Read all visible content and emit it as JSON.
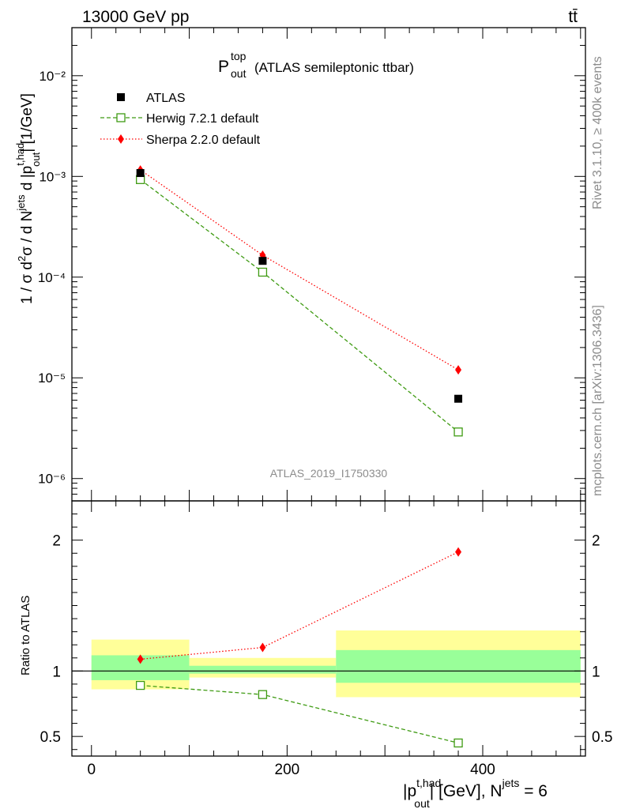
{
  "header": {
    "energy_label": "13000 GeV pp",
    "process_label": "tt̄"
  },
  "side_labels": {
    "rivet": "Rivet 3.1.10, ≥ 400k events",
    "mcplots": "mcplots.cern.ch [arXiv:1306.3436]"
  },
  "chart_data": [
    {
      "type": "scatter",
      "title_main": "P",
      "title_sup": "top",
      "title_sub": "out",
      "title_rest": "(ATLAS semileptonic ttbar)",
      "analysis_label": "ATLAS_2019_I1750330",
      "ylabel": "1 / σ d²σ / d N^jets d |p_out^t,had| [1/GeV]",
      "ylog": true,
      "ylim": [
        6e-07,
        0.03
      ],
      "xlim": [
        -20,
        505
      ],
      "ytick_labels": [
        "10⁻²",
        "10⁻³",
        "10⁻⁴",
        "10⁻⁵",
        "10⁻⁶"
      ],
      "ytick_values": [
        0.01,
        0.001,
        0.0001,
        1e-05,
        1e-06
      ],
      "x": [
        50,
        175,
        375
      ],
      "series": [
        {
          "name": "ATLAS",
          "values": [
            0.00108,
            0.000145,
            6.2e-06
          ],
          "color": "#000000",
          "marker": "square-filled"
        },
        {
          "name": "Herwig 7.2.1 default",
          "values": [
            0.00093,
            0.000112,
            2.9e-06
          ],
          "color": "#3f9b13",
          "marker": "square-open",
          "line": "dashed"
        },
        {
          "name": "Sherpa 2.2.0 default",
          "values": [
            0.00116,
            0.000165,
            1.2e-05
          ],
          "color": "#ff0000",
          "marker": "diamond",
          "line": "dotted"
        }
      ]
    },
    {
      "type": "scatter",
      "ylabel": "Ratio to ATLAS",
      "xlabel": "|p_out^t,had| [GeV], N^jets = 6",
      "ylim": [
        0.35,
        2.3
      ],
      "xlim": [
        -20,
        505
      ],
      "xtick_values": [
        0,
        200,
        400
      ],
      "xtick_labels": [
        "0",
        "200",
        "400"
      ],
      "ytick_values": [
        0.5,
        1,
        2
      ],
      "ytick_labels": [
        "0.5",
        "1",
        "2"
      ],
      "bands": [
        {
          "xmin": 0,
          "xmax": 100,
          "stat": [
            0.93,
            1.12
          ],
          "total": [
            0.86,
            1.24
          ]
        },
        {
          "xmin": 100,
          "xmax": 250,
          "stat": [
            0.98,
            1.04
          ],
          "total": [
            0.95,
            1.1
          ]
        },
        {
          "xmin": 250,
          "xmax": 500,
          "stat": [
            0.91,
            1.16
          ],
          "total": [
            0.8,
            1.31
          ]
        }
      ],
      "band_colors": {
        "stat": "#99ff99",
        "total": "#ffff99"
      },
      "series": [
        {
          "name": "Herwig 7.2.1 default",
          "values": [
            0.89,
            0.82,
            0.45
          ],
          "color": "#3f9b13",
          "marker": "square-open",
          "line": "dashed"
        },
        {
          "name": "Sherpa 2.2.0 default",
          "values": [
            1.09,
            1.18,
            1.91
          ],
          "color": "#ff0000",
          "marker": "diamond",
          "line": "dotted"
        }
      ]
    }
  ]
}
